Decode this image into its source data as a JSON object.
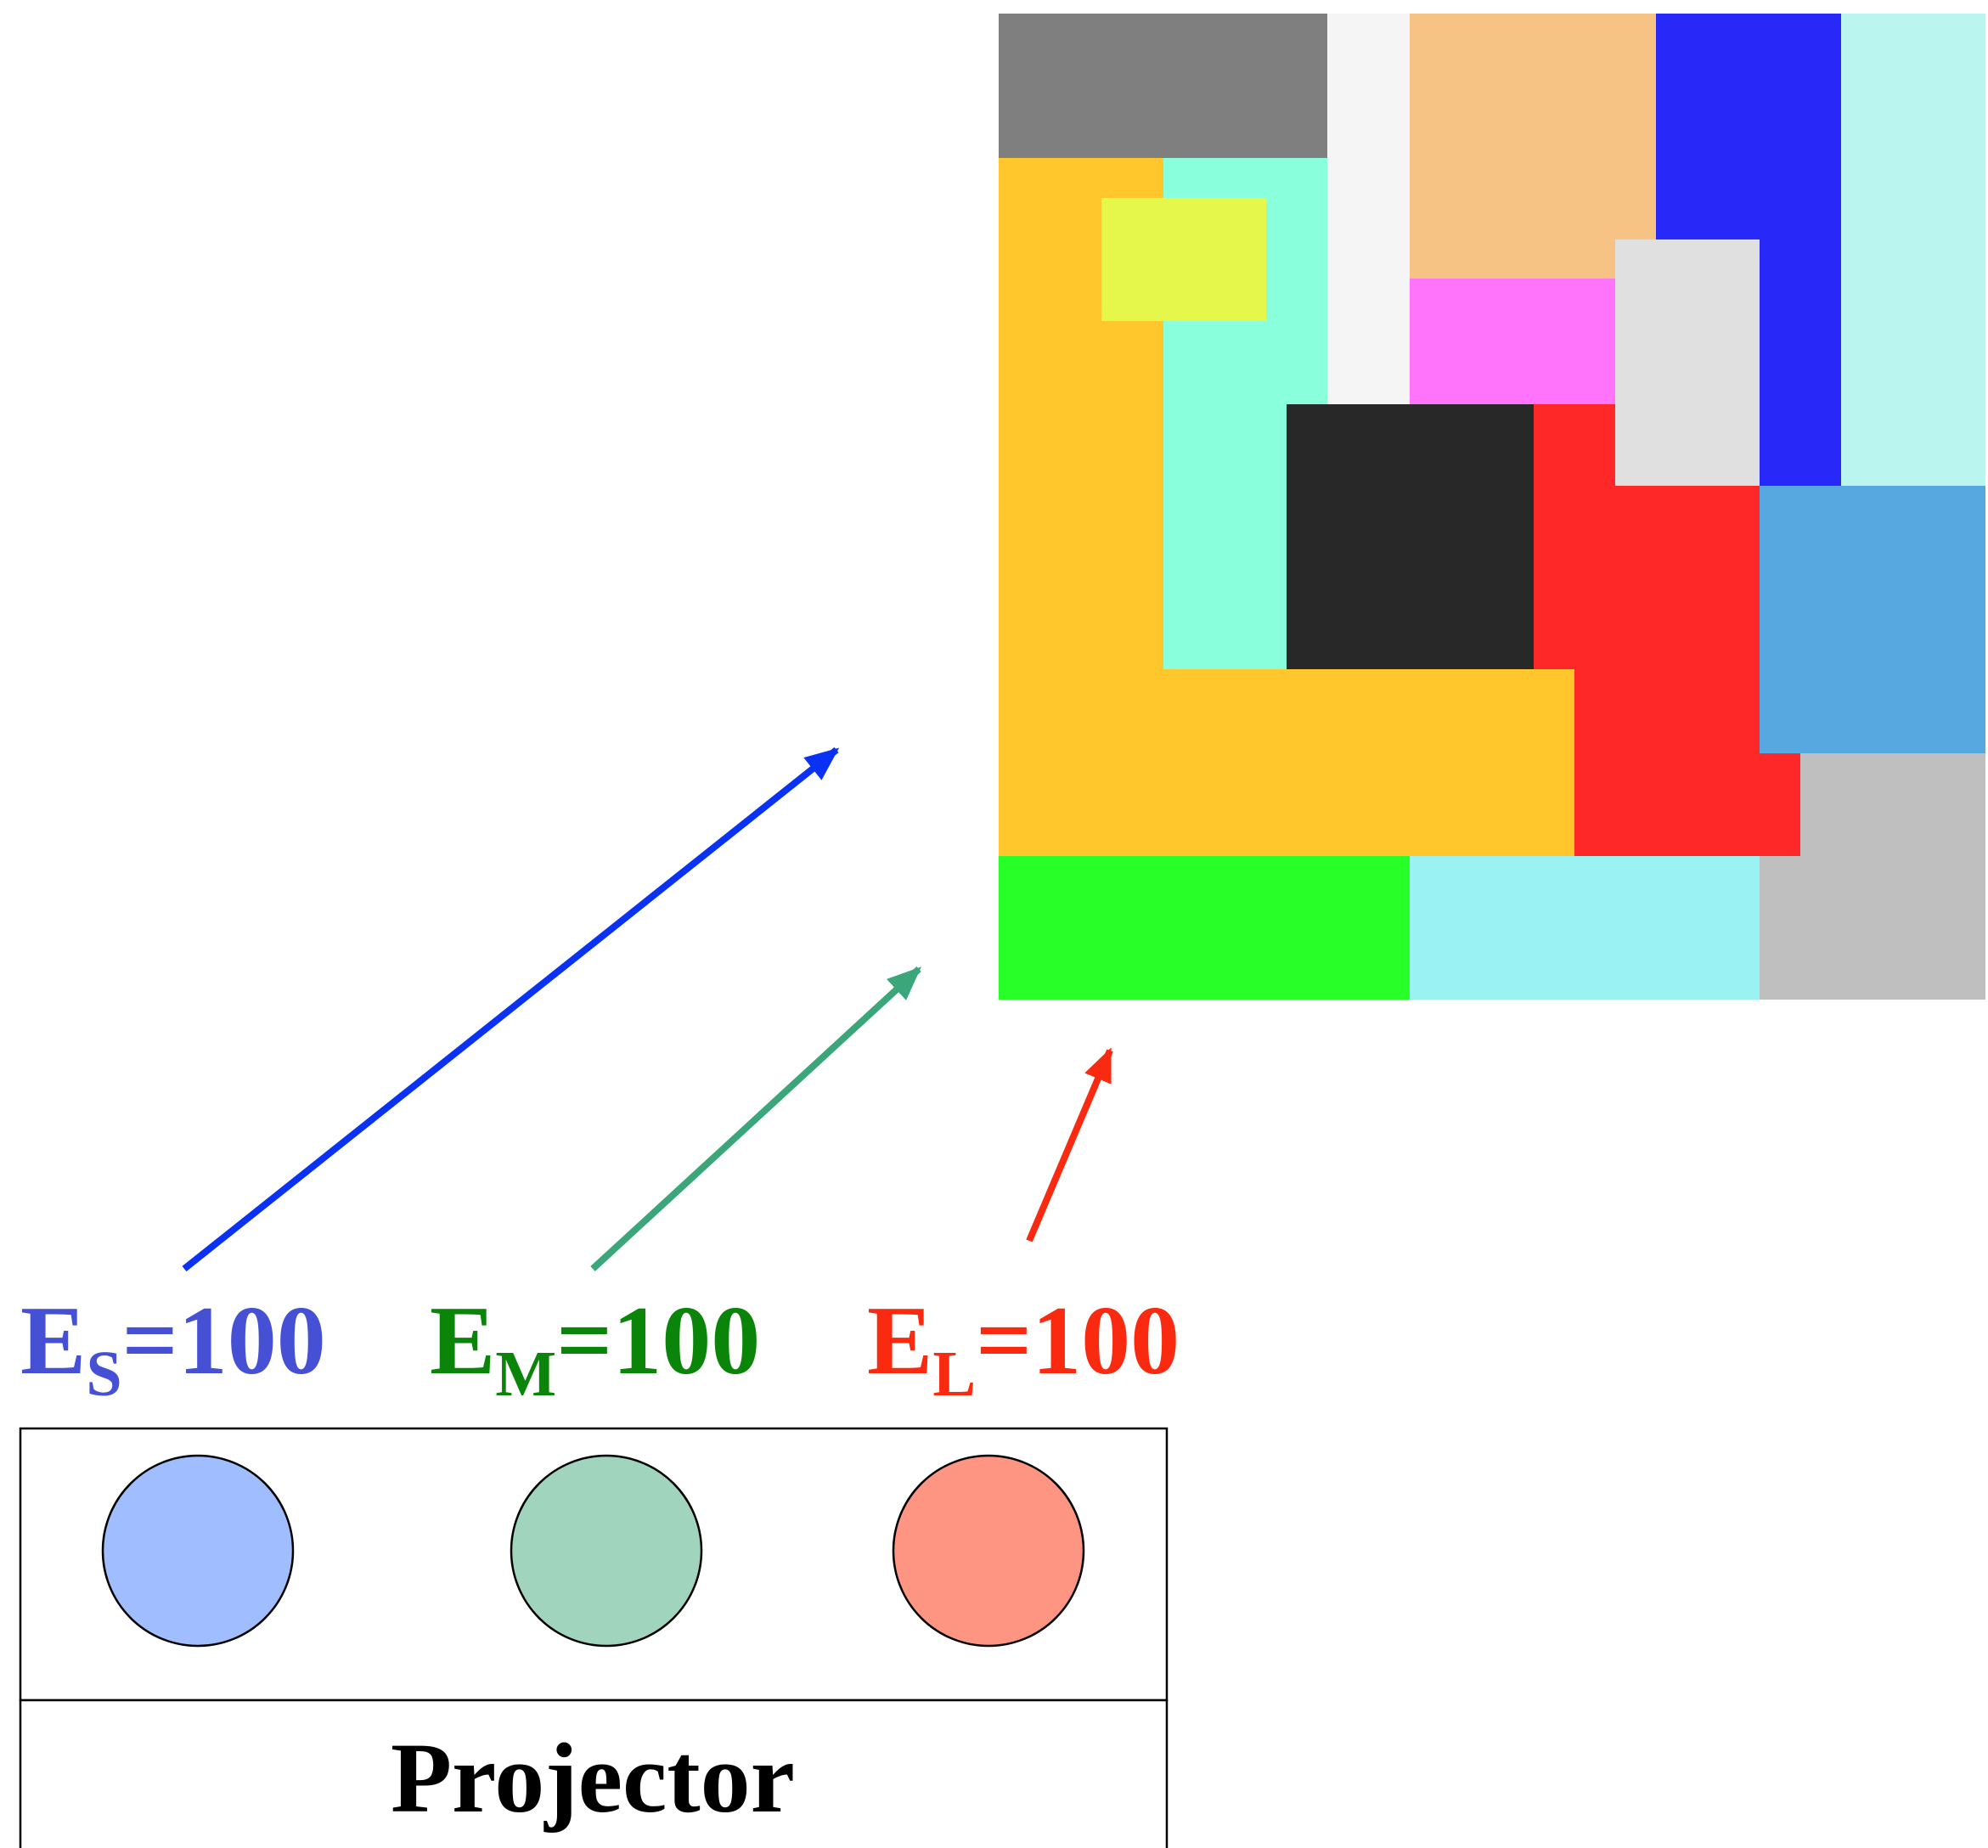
{
  "labels": {
    "s": {
      "letter": "E",
      "subscript": "S",
      "value": "=100",
      "color": "#4550d4"
    },
    "m": {
      "letter": "E",
      "subscript": "M",
      "value": "=100",
      "color": "#0a850a"
    },
    "l": {
      "letter": "E",
      "subscript": "L",
      "value": "=100",
      "color": "#fa2a10"
    }
  },
  "projector": {
    "label": "Projector",
    "lamps": [
      {
        "name": "short-wavelength-lamp",
        "color": "#a0beff"
      },
      {
        "name": "medium-wavelength-lamp",
        "color": "#a0d4bd"
      },
      {
        "name": "long-wavelength-lamp",
        "color": "#fd9582"
      }
    ]
  },
  "arrows": [
    {
      "name": "short-arrow",
      "color": "#0a32f5"
    },
    {
      "name": "medium-arrow",
      "color": "#3aa67a"
    },
    {
      "name": "long-arrow",
      "color": "#fa2a10"
    }
  ],
  "mondrian": {
    "patches": [
      {
        "color": "#7f7f7f"
      },
      {
        "color": "#f5f5f5"
      },
      {
        "color": "#f6c384"
      },
      {
        "color": "#2828f8"
      },
      {
        "color": "#bbf5ef"
      },
      {
        "color": "#ffc72b"
      },
      {
        "color": "#89ffdc"
      },
      {
        "color": "#e6f74c"
      },
      {
        "color": "#ff74fb"
      },
      {
        "color": "#e0e0e0"
      },
      {
        "color": "#282828"
      },
      {
        "color": "#ff2828"
      },
      {
        "color": "#57a8e0"
      },
      {
        "color": "#bfbfbf"
      },
      {
        "color": "#28ff28"
      },
      {
        "color": "#9bf2f2"
      }
    ]
  }
}
